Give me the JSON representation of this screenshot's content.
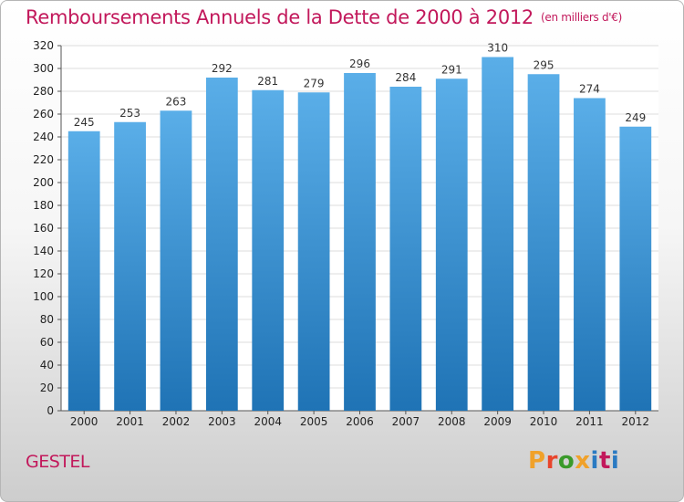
{
  "chart_data": {
    "type": "bar",
    "title": "Remboursements Annuels de la Dette de 2000 à 2012",
    "unit_note": "(en milliers d'€)",
    "categories": [
      "2000",
      "2001",
      "2002",
      "2003",
      "2004",
      "2005",
      "2006",
      "2007",
      "2008",
      "2009",
      "2010",
      "2011",
      "2012"
    ],
    "values": [
      245,
      253,
      263,
      292,
      281,
      279,
      296,
      284,
      291,
      310,
      295,
      274,
      249
    ],
    "ylim": [
      0,
      320
    ],
    "yticks": [
      0,
      20,
      40,
      60,
      80,
      100,
      120,
      140,
      160,
      180,
      200,
      220,
      240,
      260,
      280,
      300,
      320
    ],
    "grid": true,
    "bar_color_top": "#5aaee8",
    "bar_color_bottom": "#1f73b5"
  },
  "footer": {
    "commune": "GESTEL",
    "logo_text": "Proxiti",
    "logo_colors": [
      "#f0a12a",
      "#e8452c",
      "#3a9a2a",
      "#f0a12a",
      "#2a7ac2",
      "#c2185b",
      "#2a7ac2"
    ]
  },
  "colors": {
    "title": "#c2185b",
    "grid": "#dddddd",
    "axis": "#555555"
  }
}
